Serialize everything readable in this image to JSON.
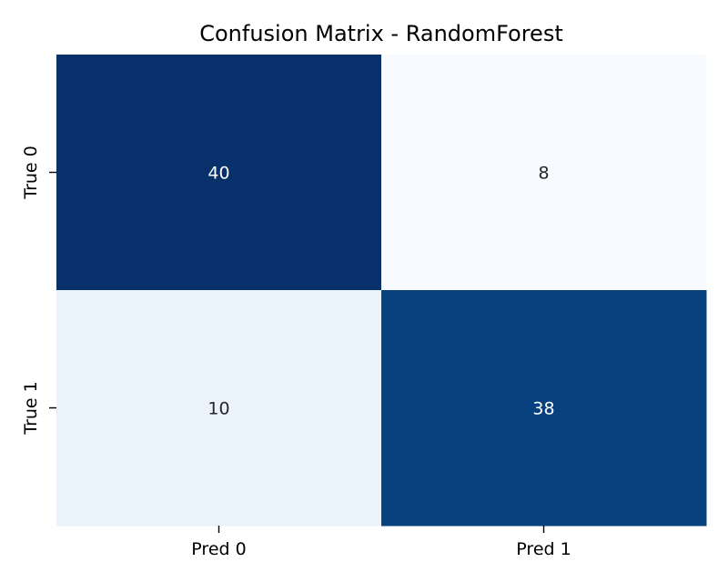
{
  "chart_data": {
    "type": "heatmap",
    "title": "Confusion Matrix - RandomForest",
    "xlabel": "",
    "ylabel": "",
    "x_categories": [
      "Pred 0",
      "Pred 1"
    ],
    "y_categories": [
      "True 0",
      "True 1"
    ],
    "values": [
      [
        40,
        8
      ],
      [
        10,
        38
      ]
    ],
    "colormap": "Blues",
    "colorbar": false,
    "annotate": true,
    "cell_colors": [
      [
        "#08306b",
        "#f7fbff"
      ],
      [
        "#eaf2fb",
        "#08427e"
      ]
    ],
    "annotation_colors": [
      [
        "#ffffff",
        "#262626"
      ],
      [
        "#262626",
        "#ffffff"
      ]
    ]
  }
}
